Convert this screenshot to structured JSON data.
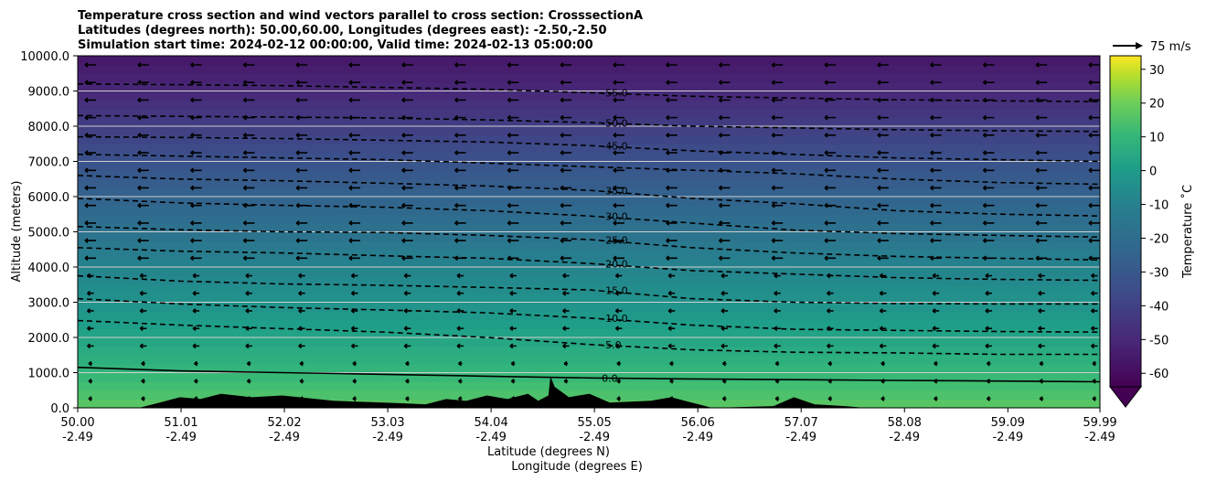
{
  "chart_data": {
    "type": "contour",
    "title_lines": [
      "Temperature cross section and wind vectors parallel to cross section: CrosssectionA",
      "Latitudes (degrees north): 50.00,60.00, Longitudes (degrees east): -2.50,-2.50",
      "Simulation start time: 2024-02-12 00:00:00, Valid time: 2024-02-13 05:00:00"
    ],
    "xlabel_lat": "Latitude (degrees N)",
    "xlabel_lon": "Longitude (degrees E)",
    "ylabel": "Altitude (meters)",
    "xlim": [
      50.0,
      59.99
    ],
    "ylim": [
      0,
      10000
    ],
    "x_ticks": [
      {
        "lat": "50.00",
        "lon": "-2.49",
        "value": 50.0
      },
      {
        "lat": "51.01",
        "lon": "-2.49",
        "value": 51.01
      },
      {
        "lat": "52.02",
        "lon": "-2.49",
        "value": 52.02
      },
      {
        "lat": "53.03",
        "lon": "-2.49",
        "value": 53.03
      },
      {
        "lat": "54.04",
        "lon": "-2.49",
        "value": 54.04
      },
      {
        "lat": "55.05",
        "lon": "-2.49",
        "value": 55.05
      },
      {
        "lat": "56.06",
        "lon": "-2.49",
        "value": 56.06
      },
      {
        "lat": "57.07",
        "lon": "-2.49",
        "value": 57.07
      },
      {
        "lat": "58.08",
        "lon": "-2.49",
        "value": 58.08
      },
      {
        "lat": "59.09",
        "lon": "-2.49",
        "value": 59.09
      },
      {
        "lat": "59.99",
        "lon": "-2.49",
        "value": 59.99
      }
    ],
    "y_ticks": [
      {
        "label": "0.0",
        "value": 0
      },
      {
        "label": "1000.0",
        "value": 1000
      },
      {
        "label": "2000.0",
        "value": 2000
      },
      {
        "label": "3000.0",
        "value": 3000
      },
      {
        "label": "4000.0",
        "value": 4000
      },
      {
        "label": "5000.0",
        "value": 5000
      },
      {
        "label": "6000.0",
        "value": 6000
      },
      {
        "label": "7000.0",
        "value": 7000
      },
      {
        "label": "8000.0",
        "value": 8000
      },
      {
        "label": "9000.0",
        "value": 9000
      },
      {
        "label": "10000.0",
        "value": 10000
      }
    ],
    "colorbar": {
      "label": "Temperature ˚C",
      "range": [
        -64,
        34
      ],
      "ticks": [
        30,
        20,
        10,
        0,
        -10,
        -20,
        -30,
        -40,
        -50,
        -60
      ],
      "extend": "min",
      "colormap": "viridis"
    },
    "temperature_profile": [
      {
        "alt": 0,
        "temp": 9
      },
      {
        "alt": 1000,
        "temp": 1
      },
      {
        "alt": 2000,
        "temp": -7
      },
      {
        "alt": 3000,
        "temp": -14
      },
      {
        "alt": 4000,
        "temp": -20
      },
      {
        "alt": 5000,
        "temp": -27
      },
      {
        "alt": 6000,
        "temp": -33
      },
      {
        "alt": 7000,
        "temp": -39
      },
      {
        "alt": 8000,
        "temp": -46
      },
      {
        "alt": 9000,
        "temp": -53
      },
      {
        "alt": 10000,
        "temp": -58
      }
    ],
    "isotherms": [
      {
        "level": -5.0,
        "label": "-5.0",
        "label_x": 55.05,
        "points": [
          [
            50.0,
            2480
          ],
          [
            51.0,
            2350
          ],
          [
            52.0,
            2250
          ],
          [
            53.0,
            2150
          ],
          [
            54.0,
            2000
          ],
          [
            55.0,
            1800
          ],
          [
            56.0,
            1650
          ],
          [
            57.0,
            1580
          ],
          [
            58.0,
            1560
          ],
          [
            59.0,
            1520
          ],
          [
            59.99,
            1520
          ]
        ]
      },
      {
        "level": -10.0,
        "label": "-10.0",
        "label_x": 55.05,
        "points": [
          [
            50.0,
            3100
          ],
          [
            51.0,
            2950
          ],
          [
            52.0,
            2850
          ],
          [
            53.0,
            2780
          ],
          [
            54.0,
            2700
          ],
          [
            55.0,
            2550
          ],
          [
            56.0,
            2350
          ],
          [
            57.0,
            2230
          ],
          [
            58.0,
            2200
          ],
          [
            59.0,
            2170
          ],
          [
            59.99,
            2150
          ]
        ]
      },
      {
        "level": -15.0,
        "label": "-15.0",
        "label_x": 55.05,
        "points": [
          [
            50.0,
            3750
          ],
          [
            51.0,
            3600
          ],
          [
            52.0,
            3520
          ],
          [
            53.0,
            3480
          ],
          [
            54.0,
            3420
          ],
          [
            55.0,
            3350
          ],
          [
            56.0,
            3100
          ],
          [
            57.0,
            3000
          ],
          [
            58.0,
            2960
          ],
          [
            59.0,
            2950
          ],
          [
            59.99,
            2950
          ]
        ]
      },
      {
        "level": -20.0,
        "label": "-20.0",
        "label_x": 55.05,
        "points": [
          [
            50.0,
            4550
          ],
          [
            51.0,
            4450
          ],
          [
            52.0,
            4400
          ],
          [
            53.0,
            4320
          ],
          [
            54.0,
            4250
          ],
          [
            55.0,
            4100
          ],
          [
            56.0,
            3900
          ],
          [
            57.0,
            3800
          ],
          [
            58.0,
            3700
          ],
          [
            59.0,
            3650
          ],
          [
            59.99,
            3620
          ]
        ]
      },
      {
        "level": -25.0,
        "label": "-25.0",
        "label_x": 55.05,
        "points": [
          [
            50.0,
            5150
          ],
          [
            51.0,
            5060
          ],
          [
            52.0,
            5000
          ],
          [
            53.0,
            4980
          ],
          [
            54.0,
            4900
          ],
          [
            55.0,
            4780
          ],
          [
            56.0,
            4550
          ],
          [
            57.0,
            4400
          ],
          [
            58.0,
            4300
          ],
          [
            59.0,
            4250
          ],
          [
            59.99,
            4200
          ]
        ]
      },
      {
        "level": -30.0,
        "label": "-30.0",
        "label_x": 55.05,
        "points": [
          [
            50.0,
            5950
          ],
          [
            51.0,
            5820
          ],
          [
            52.0,
            5750
          ],
          [
            53.0,
            5700
          ],
          [
            54.0,
            5600
          ],
          [
            55.0,
            5450
          ],
          [
            56.0,
            5250
          ],
          [
            57.0,
            5050
          ],
          [
            58.0,
            4950
          ],
          [
            59.0,
            4900
          ],
          [
            59.99,
            4850
          ]
        ]
      },
      {
        "level": -35.0,
        "label": "-35.0",
        "label_x": 55.05,
        "points": [
          [
            50.0,
            6600
          ],
          [
            51.0,
            6500
          ],
          [
            52.0,
            6450
          ],
          [
            53.0,
            6380
          ],
          [
            54.0,
            6300
          ],
          [
            55.0,
            6180
          ],
          [
            56.0,
            5950
          ],
          [
            57.0,
            5800
          ],
          [
            58.0,
            5600
          ],
          [
            59.0,
            5500
          ],
          [
            59.99,
            5450
          ]
        ]
      },
      {
        "level": -40.0,
        "label": "",
        "label_x": 55.05,
        "points": [
          [
            50.0,
            7200
          ],
          [
            51.0,
            7150
          ],
          [
            52.0,
            7100
          ],
          [
            53.0,
            7050
          ],
          [
            54.0,
            6950
          ],
          [
            55.0,
            6850
          ],
          [
            56.0,
            6750
          ],
          [
            57.0,
            6650
          ],
          [
            58.0,
            6500
          ],
          [
            59.0,
            6400
          ],
          [
            59.99,
            6350
          ]
        ]
      },
      {
        "level": -45.0,
        "label": "-45.0",
        "label_x": 55.05,
        "points": [
          [
            50.0,
            7700
          ],
          [
            51.0,
            7680
          ],
          [
            52.0,
            7650
          ],
          [
            53.0,
            7600
          ],
          [
            54.0,
            7550
          ],
          [
            55.0,
            7450
          ],
          [
            56.0,
            7300
          ],
          [
            57.0,
            7200
          ],
          [
            58.0,
            7100
          ],
          [
            59.0,
            7050
          ],
          [
            59.99,
            7000
          ]
        ]
      },
      {
        "level": -50.0,
        "label": "-50.0",
        "label_x": 55.05,
        "points": [
          [
            50.0,
            8300
          ],
          [
            51.0,
            8280
          ],
          [
            52.0,
            8260
          ],
          [
            53.0,
            8230
          ],
          [
            54.0,
            8180
          ],
          [
            55.0,
            8100
          ],
          [
            56.0,
            8000
          ],
          [
            57.0,
            7950
          ],
          [
            58.0,
            7900
          ],
          [
            59.0,
            7870
          ],
          [
            59.99,
            7850
          ]
        ]
      },
      {
        "level": -55.0,
        "label": "-55.0",
        "label_x": 55.05,
        "points": [
          [
            50.0,
            9200
          ],
          [
            51.0,
            9180
          ],
          [
            52.0,
            9150
          ],
          [
            53.0,
            9100
          ],
          [
            54.0,
            9050
          ],
          [
            55.0,
            8950
          ],
          [
            56.0,
            8850
          ],
          [
            57.0,
            8800
          ],
          [
            58.0,
            8750
          ],
          [
            59.0,
            8720
          ],
          [
            59.99,
            8700
          ]
        ]
      },
      {
        "level": 0.0,
        "label": "0.0",
        "label_x": 55.05,
        "solid": true,
        "points": [
          [
            50.0,
            1150
          ],
          [
            51.0,
            1050
          ],
          [
            52.0,
            1000
          ],
          [
            53.0,
            950
          ],
          [
            54.0,
            900
          ],
          [
            55.0,
            850
          ],
          [
            56.0,
            820
          ],
          [
            57.0,
            800
          ],
          [
            58.0,
            780
          ],
          [
            59.0,
            760
          ],
          [
            59.99,
            740
          ]
        ]
      }
    ],
    "terrain": [
      [
        50.0,
        0
      ],
      [
        50.6,
        0
      ],
      [
        50.8,
        150
      ],
      [
        51.0,
        300
      ],
      [
        51.2,
        250
      ],
      [
        51.4,
        400
      ],
      [
        51.7,
        300
      ],
      [
        52.0,
        350
      ],
      [
        52.5,
        200
      ],
      [
        53.0,
        150
      ],
      [
        53.4,
        100
      ],
      [
        53.6,
        250
      ],
      [
        53.8,
        200
      ],
      [
        54.0,
        350
      ],
      [
        54.2,
        250
      ],
      [
        54.4,
        400
      ],
      [
        54.5,
        200
      ],
      [
        54.6,
        350
      ],
      [
        54.62,
        900
      ],
      [
        54.66,
        600
      ],
      [
        54.8,
        300
      ],
      [
        55.0,
        400
      ],
      [
        55.2,
        150
      ],
      [
        55.6,
        200
      ],
      [
        55.8,
        300
      ],
      [
        56.0,
        150
      ],
      [
        56.2,
        0
      ],
      [
        56.8,
        50
      ],
      [
        57.0,
        300
      ],
      [
        57.2,
        100
      ],
      [
        57.5,
        50
      ],
      [
        57.7,
        0
      ],
      [
        59.99,
        0
      ]
    ],
    "wind_vector_key": "75 m/s",
    "wind_direction": "south"
  }
}
